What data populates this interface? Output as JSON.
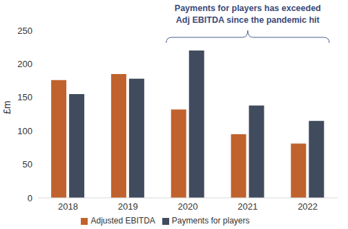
{
  "chart_data": {
    "type": "bar",
    "y_label": "£m",
    "categories": [
      "2018",
      "2019",
      "2020",
      "2021",
      "2022"
    ],
    "series": [
      {
        "name": "Adjusted EBITDA",
        "color": "#c0622d",
        "values": [
          176,
          185,
          132,
          95,
          81
        ]
      },
      {
        "name": "Payments for players",
        "color": "#414b5e",
        "values": [
          155,
          178,
          220,
          138,
          115
        ]
      }
    ],
    "ylim": [
      0,
      250
    ],
    "yticks": [
      0,
      50,
      100,
      150,
      200,
      250
    ],
    "grid": false,
    "legend": "bottom",
    "annotations": [
      {
        "text": "Payments for players has exceeded\nAdj EBITDA since the pandemic hit",
        "from": "2020",
        "to": "2022"
      }
    ]
  }
}
